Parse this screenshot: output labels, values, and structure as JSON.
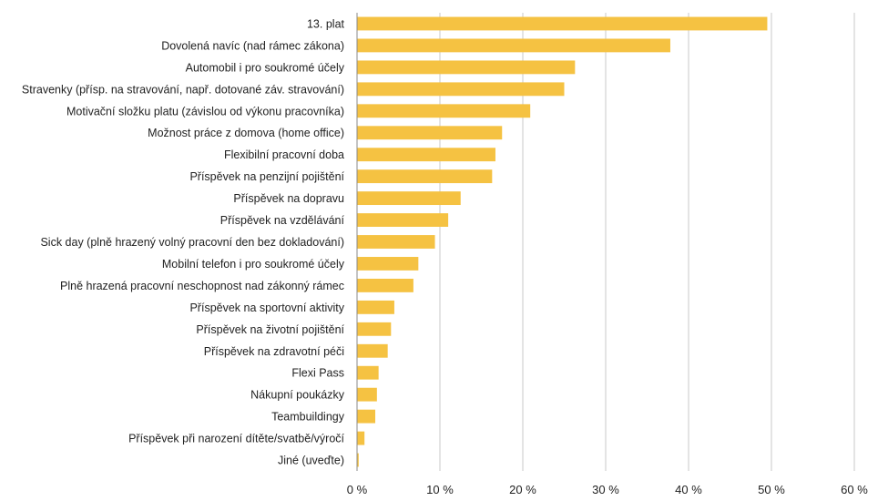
{
  "chart_data": {
    "type": "bar",
    "orientation": "horizontal",
    "title": "",
    "xlabel": "",
    "ylabel": "",
    "xlim": [
      0,
      60
    ],
    "x_ticks": [
      0,
      10,
      20,
      30,
      40,
      50,
      60
    ],
    "x_tick_labels": [
      "0 %",
      "10 %",
      "20 %",
      "30 %",
      "40 %",
      "50 %",
      "60 %"
    ],
    "grid": "vertical",
    "bar_color": "#F5C242",
    "categories": [
      "13. plat",
      "Dovolená navíc (nad rámec zákona)",
      "Automobil i pro soukromé účely",
      "Stravenky (přísp. na stravování, např. dotované záv. stravování)",
      "Motivační složku platu (závislou od výkonu pracovníka)",
      "Možnost práce z domova (home office)",
      "Flexibilní pracovní doba",
      "Příspěvek na penzijní pojištění",
      "Příspěvek na dopravu",
      "Příspěvek na vzdělávání",
      "Sick day (plně hrazený volný pracovní den bez dokladování)",
      "Mobilní telefon i pro soukromé účely",
      "Plně hrazená pracovní neschopnost nad zákonný rámec",
      "Příspěvek na sportovní aktivity",
      "Příspěvek na životní pojištění",
      "Příspěvek na zdravotní péči",
      "Flexi Pass",
      "Nákupní poukázky",
      "Teambuildingy",
      "Příspěvek při narození dítěte/svatbě/výročí",
      "Jiné (uveďte)"
    ],
    "values": [
      49.5,
      37.8,
      26.3,
      25.0,
      20.9,
      17.5,
      16.7,
      16.3,
      12.5,
      11.0,
      9.4,
      7.4,
      6.8,
      4.5,
      4.1,
      3.7,
      2.6,
      2.4,
      2.2,
      0.9,
      0.2
    ]
  }
}
